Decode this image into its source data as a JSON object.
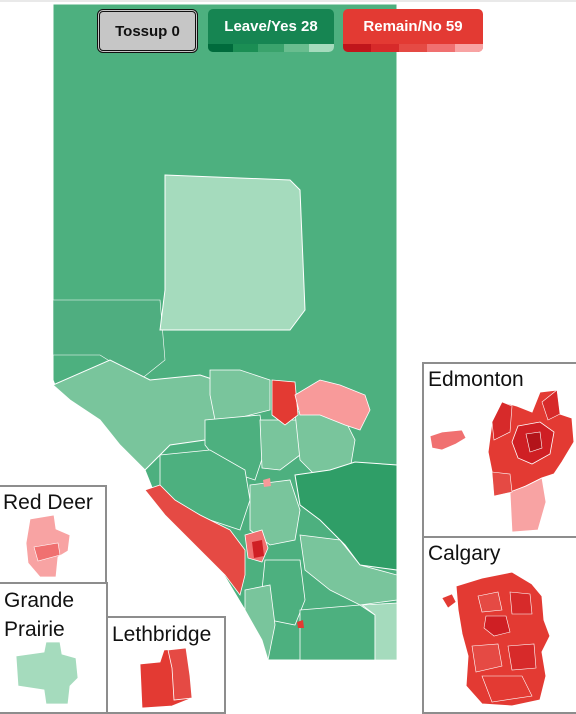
{
  "buttons": {
    "tossup": "Tossup 0",
    "leave": "Leave/Yes 28",
    "remain": "Remain/No 59"
  },
  "insets": {
    "edmonton": "Edmonton",
    "calgary": "Calgary",
    "red_deer": "Red Deer",
    "grande_prairie_line1": "Grande",
    "grande_prairie_line2": "Prairie",
    "lethbridge": "Lethbridge"
  },
  "colors": {
    "leave_strong": "#168552",
    "leave_mid": "#2f9e67",
    "leave_light": "#4db07f",
    "leave_pale": "#79c59c",
    "leave_palest": "#a5dbbd",
    "remain_strong": "#cf1f24",
    "remain_mid": "#e33a33",
    "remain_light": "#f07070",
    "remain_pale": "#f89a9a"
  }
}
